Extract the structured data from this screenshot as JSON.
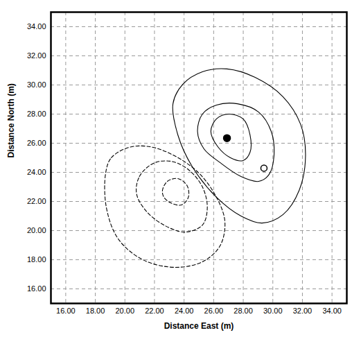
{
  "chart_data": {
    "type": "contour",
    "x_label": "Distance East (m)",
    "y_label": "Distance North (m)",
    "xlim": [
      15,
      35
    ],
    "ylim": [
      15,
      35
    ],
    "xticks": [
      {
        "value": 16,
        "label": "16.00"
      },
      {
        "value": 18,
        "label": "18.00"
      },
      {
        "value": 20,
        "label": "20.00"
      },
      {
        "value": 22,
        "label": "22.00"
      },
      {
        "value": 24,
        "label": "24.00"
      },
      {
        "value": 26,
        "label": "26.00"
      },
      {
        "value": 28,
        "label": "28.00"
      },
      {
        "value": 30,
        "label": "30.00"
      },
      {
        "value": 32,
        "label": "32.00"
      },
      {
        "value": 34,
        "label": "34.00"
      }
    ],
    "yticks": [
      {
        "value": 16,
        "label": "16.00"
      },
      {
        "value": 18,
        "label": "18.00"
      },
      {
        "value": 20,
        "label": "20.00"
      },
      {
        "value": 22,
        "label": "22.00"
      },
      {
        "value": 24,
        "label": "24.00"
      },
      {
        "value": 26,
        "label": "26.00"
      },
      {
        "value": 28,
        "label": "28.00"
      },
      {
        "value": 30,
        "label": "30.00"
      },
      {
        "value": 32,
        "label": "32.00"
      },
      {
        "value": 34,
        "label": "34.00"
      }
    ],
    "grid": true,
    "series": [
      {
        "type": "contour",
        "color": "#000000",
        "line_style": "solid",
        "x": [
          23.25,
          23.92,
          25.24,
          26.9,
          28.8,
          30.69,
          31.88,
          32.21,
          31.78,
          30.69,
          29.27,
          27.85,
          26.19,
          24.53,
          23.58
        ],
        "y": [
          28.71,
          30.05,
          30.9,
          31.1,
          30.52,
          29.19,
          27.29,
          25.14,
          22.76,
          21.1,
          20.52,
          21.0,
          22.29,
          24.43,
          26.57
        ]
      },
      {
        "type": "contour",
        "color": "#000000",
        "line_style": "solid",
        "x": [
          24.91,
          25.24,
          26.19,
          27.61,
          29.04,
          29.89,
          30.08,
          29.75,
          29.04,
          27.85,
          26.43,
          25.34
        ],
        "y": [
          26.81,
          28.0,
          28.62,
          28.71,
          28.14,
          26.81,
          25.14,
          23.86,
          23.38,
          23.71,
          24.67,
          25.62
        ]
      },
      {
        "type": "contour",
        "color": "#000000",
        "line_style": "solid",
        "x": [
          25.81,
          26.19,
          27.04,
          27.99,
          28.46,
          28.46,
          27.99,
          27.14,
          26.28
        ],
        "y": [
          26.81,
          27.67,
          28.0,
          27.67,
          26.57,
          25.38,
          24.81,
          25.0,
          25.76
        ]
      },
      {
        "type": "contour",
        "color": "#000000",
        "line_style": "dashed",
        "x": [
          18.7,
          19.08,
          20.27,
          21.69,
          23.35,
          25.0,
          26.19,
          26.76,
          26.43,
          25.24,
          23.35,
          21.21,
          19.55,
          18.75
        ],
        "y": [
          23.95,
          25.0,
          25.71,
          25.76,
          25.14,
          23.95,
          22.29,
          20.62,
          18.95,
          17.86,
          17.48,
          18.0,
          19.43,
          21.57
        ]
      },
      {
        "type": "contour",
        "color": "#000000",
        "line_style": "dashed",
        "x": [
          20.79,
          20.98,
          21.93,
          23.11,
          24.29,
          25.24,
          25.57,
          25.24,
          24.06,
          22.64,
          21.45
        ],
        "y": [
          22.52,
          23.71,
          24.62,
          24.76,
          24.19,
          23.0,
          21.57,
          20.38,
          19.9,
          20.38,
          21.33
        ]
      },
      {
        "type": "contour",
        "color": "#000000",
        "line_style": "dashed",
        "x": [
          22.54,
          22.87,
          23.58,
          24.2,
          24.29,
          23.82,
          23.11,
          22.64
        ],
        "y": [
          22.76,
          23.38,
          23.57,
          23.1,
          22.29,
          21.76,
          21.9,
          22.29
        ]
      },
      {
        "type": "scatter",
        "color": "#000000",
        "marker": "filled",
        "x": [
          26.9
        ],
        "y": [
          26.35
        ]
      },
      {
        "type": "scatter",
        "color": "#000000",
        "marker": "open",
        "x": [
          29.4
        ],
        "y": [
          24.29
        ]
      }
    ]
  }
}
